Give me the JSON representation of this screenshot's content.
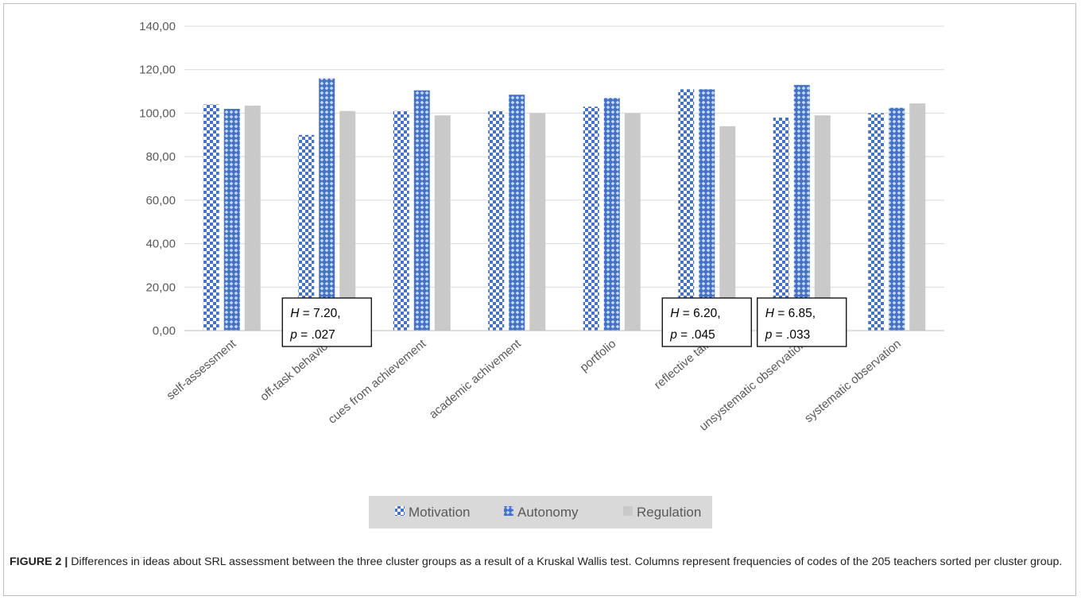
{
  "chart_data": {
    "type": "bar",
    "categories": [
      "self-assessment",
      "off-task behavior",
      "cues from achievement",
      "academic achivement",
      "portfolio",
      "reflective talk",
      "unsystematic observation",
      "systematic observation"
    ],
    "series": [
      {
        "name": "Motivation",
        "values": [
          104,
          90,
          101,
          101,
          103,
          111,
          98,
          100
        ],
        "color": "#4472c4",
        "pattern": "checker"
      },
      {
        "name": "Autonomy",
        "values": [
          102,
          116,
          110.5,
          108.5,
          107,
          111,
          113,
          102.5
        ],
        "color": "#4472c4",
        "pattern": "diamond"
      },
      {
        "name": "Regulation",
        "values": [
          103.5,
          101,
          99,
          100,
          100,
          94,
          99,
          104.5
        ],
        "color": "#c9c9c9",
        "pattern": "solid"
      }
    ],
    "ylim": [
      0,
      140
    ],
    "yticks": [
      "0,00",
      "20,00",
      "40,00",
      "60,00",
      "80,00",
      "100,00",
      "120,00",
      "140,00"
    ],
    "grid": true,
    "legend": "bottom",
    "annotations": [
      {
        "category": "off-task behavior",
        "italic1": "H",
        "text1": " = 7.20,",
        "italic2": "p",
        "text2": " = .027"
      },
      {
        "category": "reflective talk",
        "italic1": "H",
        "text1": " = 6.20,",
        "italic2": "p",
        "text2": " = .045"
      },
      {
        "category": "unsystematic observation",
        "italic1": "H",
        "text1": " = 6.85,",
        "italic2": "p",
        "text2": " = .033"
      }
    ]
  },
  "caption": {
    "lead": "FIGURE 2 |",
    "text": " Differences in ideas about SRL assessment between the three cluster groups as a result of a Kruskal Wallis test. Columns represent frequencies of codes of the 205 teachers sorted per cluster group."
  }
}
